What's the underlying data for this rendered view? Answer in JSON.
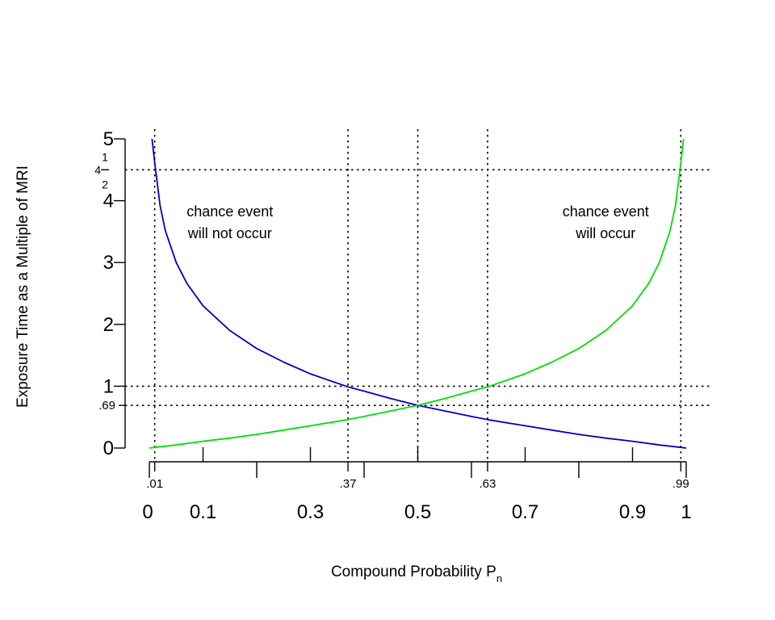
{
  "chart_data": {
    "type": "line",
    "xlabel": "Compound Probability P",
    "xlabel_sub": "n",
    "ylabel": "Exposure Time as a Multiple of MRI",
    "xlim": [
      0,
      1
    ],
    "ylim": [
      0,
      5
    ],
    "x_major_ticks": [
      {
        "value": 0,
        "label": "0"
      },
      {
        "value": 0.1,
        "label": "0.1"
      },
      {
        "value": 0.3,
        "label": "0.3"
      },
      {
        "value": 0.5,
        "label": "0.5"
      },
      {
        "value": 0.7,
        "label": "0.7"
      },
      {
        "value": 0.9,
        "label": "0.9"
      },
      {
        "value": 1,
        "label": "1"
      }
    ],
    "x_minor_ticks": [
      {
        "value": 0.01,
        "label": ".01"
      },
      {
        "value": 0.37,
        "label": ".37"
      },
      {
        "value": 0.63,
        "label": ".63"
      },
      {
        "value": 0.99,
        "label": ".99"
      }
    ],
    "x_unlabeled_ticks": [
      0,
      0.2,
      0.4,
      0.6,
      0.8,
      1
    ],
    "y_ticks": [
      {
        "value": 0,
        "label": "0"
      },
      {
        "value": 1,
        "label": "1"
      },
      {
        "value": 2,
        "label": "2"
      },
      {
        "value": 3,
        "label": "3"
      },
      {
        "value": 4,
        "label": "4"
      },
      {
        "value": 5,
        "label": "5"
      }
    ],
    "y_minor_ticks": [
      {
        "value": 0.69,
        "label": ".69"
      }
    ],
    "y_fraction_tick": {
      "value": 4.5,
      "whole": "4",
      "numerator": "1",
      "denominator": "2"
    },
    "reference_lines": {
      "vertical": [
        0.01,
        0.37,
        0.5,
        0.63,
        0.99
      ],
      "horizontal": [
        0.69,
        1,
        4.5
      ]
    },
    "series": [
      {
        "color": "#0000c8",
        "x": [
          0.005,
          0.01,
          0.02,
          0.03,
          0.05,
          0.07,
          0.1,
          0.15,
          0.2,
          0.25,
          0.3,
          0.37,
          0.4,
          0.45,
          0.5,
          0.55,
          0.6,
          0.63,
          0.7,
          0.75,
          0.8,
          0.85,
          0.9,
          0.95,
          0.99,
          1.0
        ],
        "y": [
          5.0,
          4.61,
          3.92,
          3.51,
          3.0,
          2.66,
          2.3,
          1.9,
          1.61,
          1.39,
          1.2,
          0.99,
          0.92,
          0.8,
          0.69,
          0.6,
          0.51,
          0.46,
          0.36,
          0.29,
          0.22,
          0.16,
          0.11,
          0.05,
          0.01,
          0.0
        ]
      },
      {
        "color": "#00e000",
        "x": [
          0.0,
          0.01,
          0.05,
          0.1,
          0.15,
          0.2,
          0.25,
          0.3,
          0.37,
          0.4,
          0.45,
          0.5,
          0.55,
          0.6,
          0.63,
          0.7,
          0.75,
          0.8,
          0.85,
          0.9,
          0.93,
          0.95,
          0.97,
          0.98,
          0.99,
          0.995
        ],
        "y": [
          0.0,
          0.01,
          0.05,
          0.11,
          0.16,
          0.22,
          0.29,
          0.36,
          0.46,
          0.51,
          0.6,
          0.69,
          0.8,
          0.92,
          0.99,
          1.2,
          1.39,
          1.61,
          1.9,
          2.3,
          2.66,
          3.0,
          3.51,
          3.92,
          4.61,
          5.0
        ]
      }
    ],
    "annotations": [
      {
        "lines": [
          "chance event",
          "will not occur"
        ],
        "x": 0.15,
        "y": 3.75
      },
      {
        "lines": [
          "chance event",
          "will occur"
        ],
        "x": 0.85,
        "y": 3.75
      }
    ]
  }
}
